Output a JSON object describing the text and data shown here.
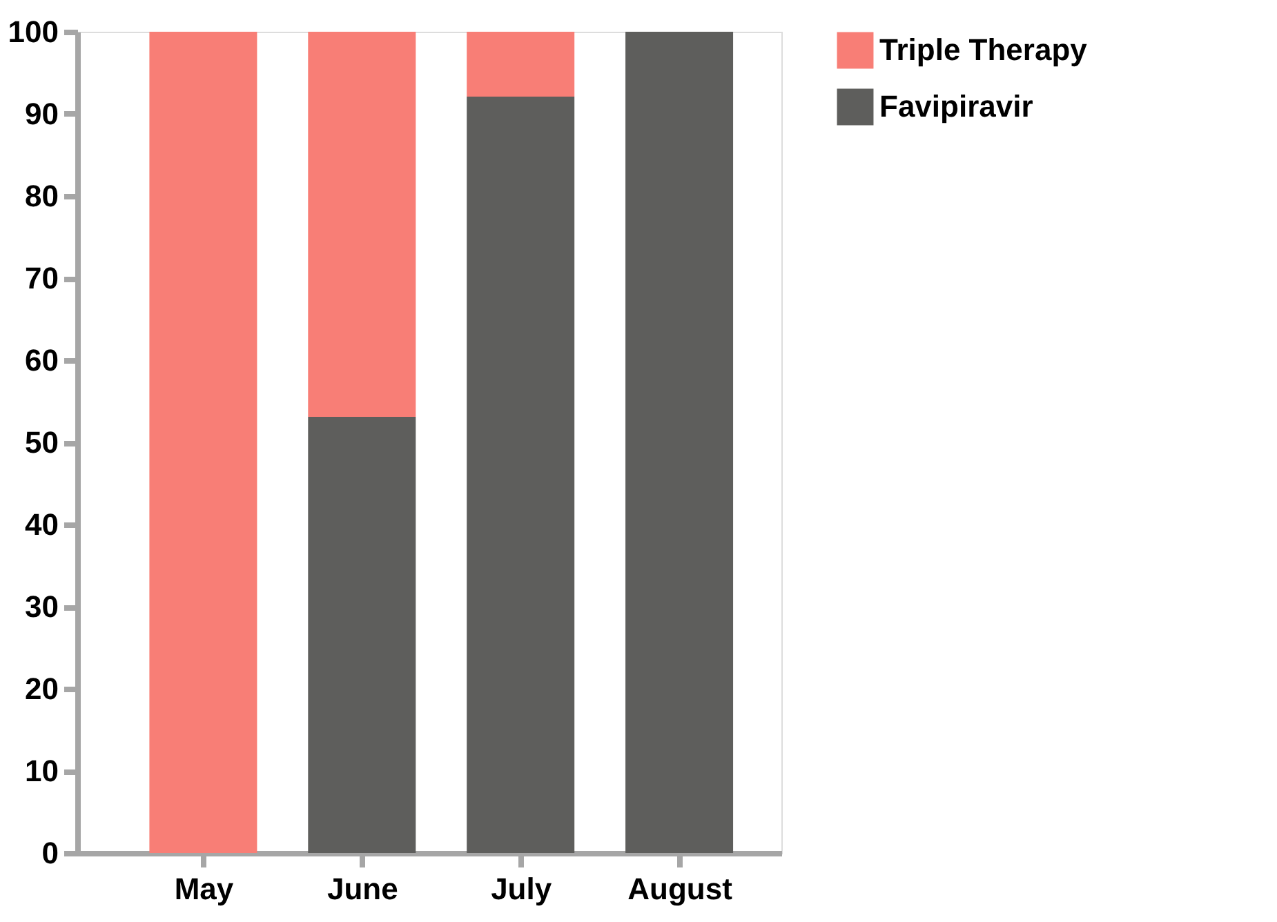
{
  "chart_data": {
    "type": "bar",
    "stacked": true,
    "categories": [
      "May",
      "June",
      "July",
      "August"
    ],
    "series": [
      {
        "name": "Favipiravir",
        "color": "#5e5e5c",
        "values": [
          0,
          53.1,
          92.1,
          100
        ]
      },
      {
        "name": "Triple Therapy",
        "color": "#f87e76",
        "values": [
          100,
          46.9,
          7.9,
          0
        ]
      }
    ],
    "ylim": [
      0,
      100
    ],
    "yticks": [
      0,
      10,
      20,
      30,
      40,
      50,
      60,
      70,
      80,
      90,
      100
    ],
    "grid": false,
    "legend": "top right"
  }
}
